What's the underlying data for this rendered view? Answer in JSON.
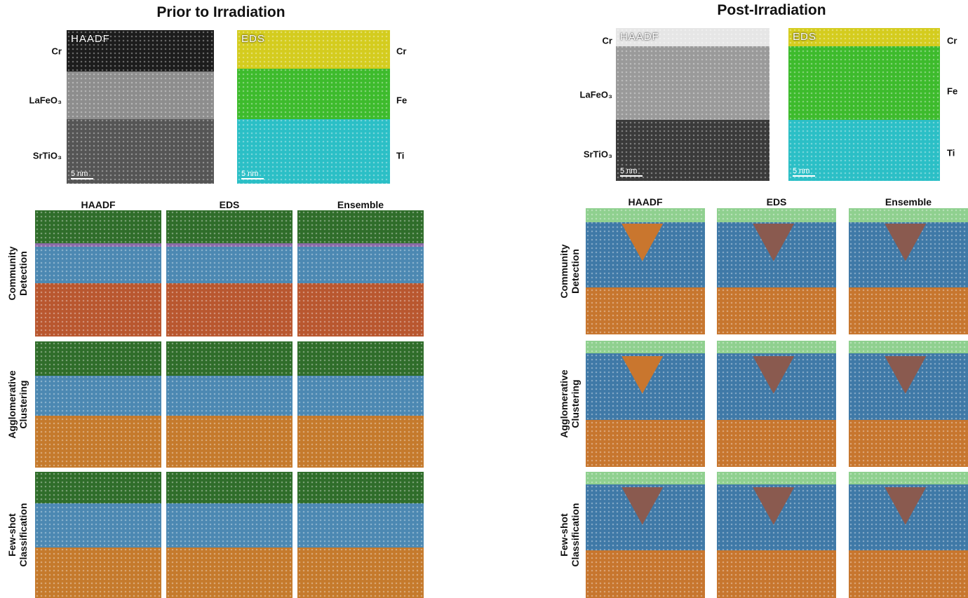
{
  "panels": [
    {
      "title": "Prior to Irradiation",
      "layers": [
        "Cr",
        "LaFeO₃",
        "SrTiO₃"
      ],
      "images": [
        {
          "label": "HAADF",
          "scale": "5 nm"
        },
        {
          "label": "EDS",
          "scale": "5 nm"
        }
      ],
      "elements": [
        "Cr",
        "Fe",
        "Ti"
      ],
      "columns": [
        "HAADF",
        "EDS",
        "Ensemble"
      ],
      "rows": [
        [
          "Community",
          "Detection"
        ],
        [
          "Agglomerative",
          "Clustering"
        ],
        [
          "Few-shot",
          "Classification"
        ]
      ]
    },
    {
      "title": "Post-Irradiation",
      "layers": [
        "Cr",
        "LaFeO₃",
        "SrTiO₃"
      ],
      "images": [
        {
          "label": "HAADF",
          "scale": "5 nm"
        },
        {
          "label": "EDS",
          "scale": "5 nm"
        }
      ],
      "elements": [
        "Cr",
        "Fe",
        "Ti"
      ],
      "columns": [
        "HAADF",
        "EDS",
        "Ensemble"
      ],
      "rows": [
        [
          "Community",
          "Detection"
        ],
        [
          "Agglomerative",
          "Clustering"
        ],
        [
          "Few-shot",
          "Classification"
        ]
      ]
    }
  ]
}
